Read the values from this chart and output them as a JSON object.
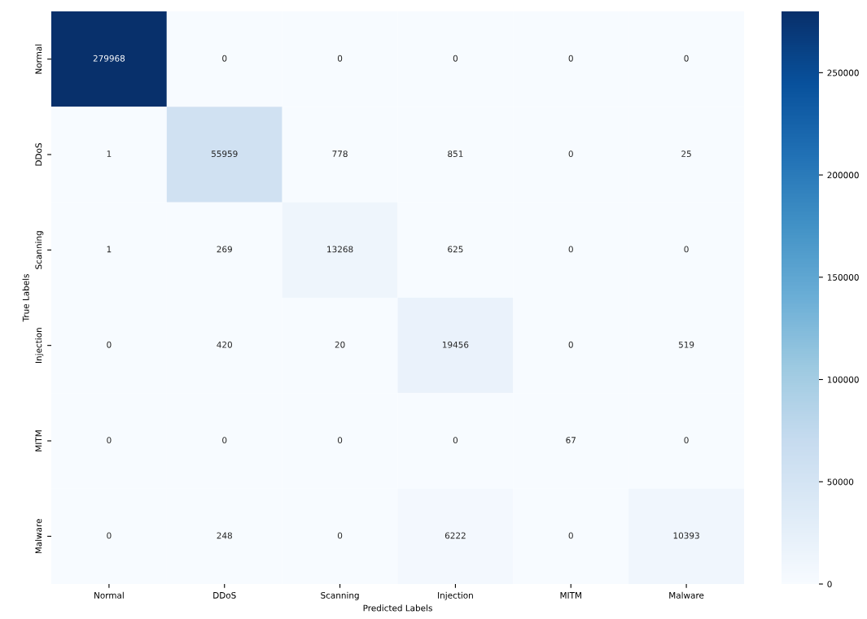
{
  "chart_data": {
    "type": "heatmap",
    "xlabel": "Predicted Labels",
    "ylabel": "True Labels",
    "categories": [
      "Normal",
      "DDoS",
      "Scanning",
      "Injection",
      "MITM",
      "Malware"
    ],
    "y_categories": [
      "Normal",
      "DDoS",
      "Scanning",
      "Injection",
      "MITM",
      "Malware"
    ],
    "cells": [
      [
        279968,
        0,
        0,
        0,
        0,
        0
      ],
      [
        1,
        55959,
        778,
        851,
        0,
        25
      ],
      [
        1,
        269,
        13268,
        625,
        0,
        0
      ],
      [
        0,
        420,
        20,
        19456,
        0,
        519
      ],
      [
        0,
        0,
        0,
        0,
        67,
        0
      ],
      [
        0,
        248,
        0,
        6222,
        0,
        10393
      ]
    ],
    "clim": [
      0,
      279968
    ],
    "cticks": [
      0,
      50000,
      100000,
      150000,
      200000,
      250000
    ],
    "data_labels": true
  }
}
